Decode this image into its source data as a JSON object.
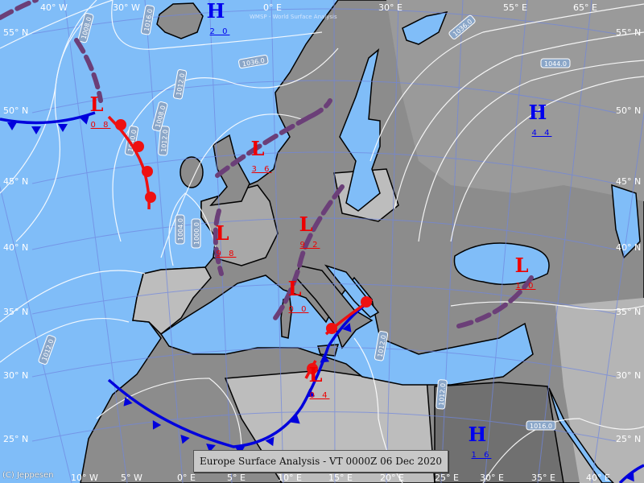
{
  "title": "Europe Surface Analysis - VT 0000Z 06 Dec 2020",
  "copyright": "(C) Jeppesen",
  "watermark": "WMSP - World Surface Analysis",
  "colors": {
    "sea": "#80bdf8",
    "land": "#8c8c8c",
    "land_light": "#bdbdbd",
    "land_dark": "#6e6e6e",
    "high": "#0000ee",
    "low": "#ee0000",
    "cold_front": "#0000dd",
    "warm_front": "#ee1111",
    "occlusion": "#6b3f78",
    "isobar": "#ffffff",
    "grid": "#6f86e0"
  },
  "longitude_labels_top": [
    "40° W",
    "30° W",
    "0° E",
    "30° E",
    "55° E",
    "65° E"
  ],
  "longitude_labels_bottom": [
    "10° W",
    "5° W",
    "0° E",
    "5° E",
    "10° E",
    "15° E",
    "20° E",
    "25° E",
    "30° E",
    "35° E",
    "40° E"
  ],
  "latitude_labels_left": [
    "55° N",
    "50° N",
    "45° N",
    "40° N",
    "35° N",
    "30° N",
    "25° N"
  ],
  "latitude_labels_right": [
    "55° N",
    "50° N",
    "45° N",
    "40° N",
    "35° N",
    "30° N",
    "25° N"
  ],
  "pressure_centers": [
    {
      "type": "H",
      "value": "2 0"
    },
    {
      "type": "L",
      "value": "0 8"
    },
    {
      "type": "L",
      "value": "3 6"
    },
    {
      "type": "L",
      "value": "9 8"
    },
    {
      "type": "L",
      "value": "9 2"
    },
    {
      "type": "L",
      "value": "0 0"
    },
    {
      "type": "L",
      "value": "0 4"
    },
    {
      "type": "L",
      "value": "1 0"
    },
    {
      "type": "H",
      "value": "4 4"
    },
    {
      "type": "H",
      "value": "1 6"
    }
  ],
  "isobar_labels": [
    "1008.0",
    "1012.0",
    "1012.0",
    "1016.0",
    "1008.0",
    "1036.0",
    "1044.0",
    "1040.0",
    "1036.0",
    "1004.0",
    "1000.0",
    "1012.0",
    "1012.0",
    "1016.0",
    "1012.0"
  ]
}
